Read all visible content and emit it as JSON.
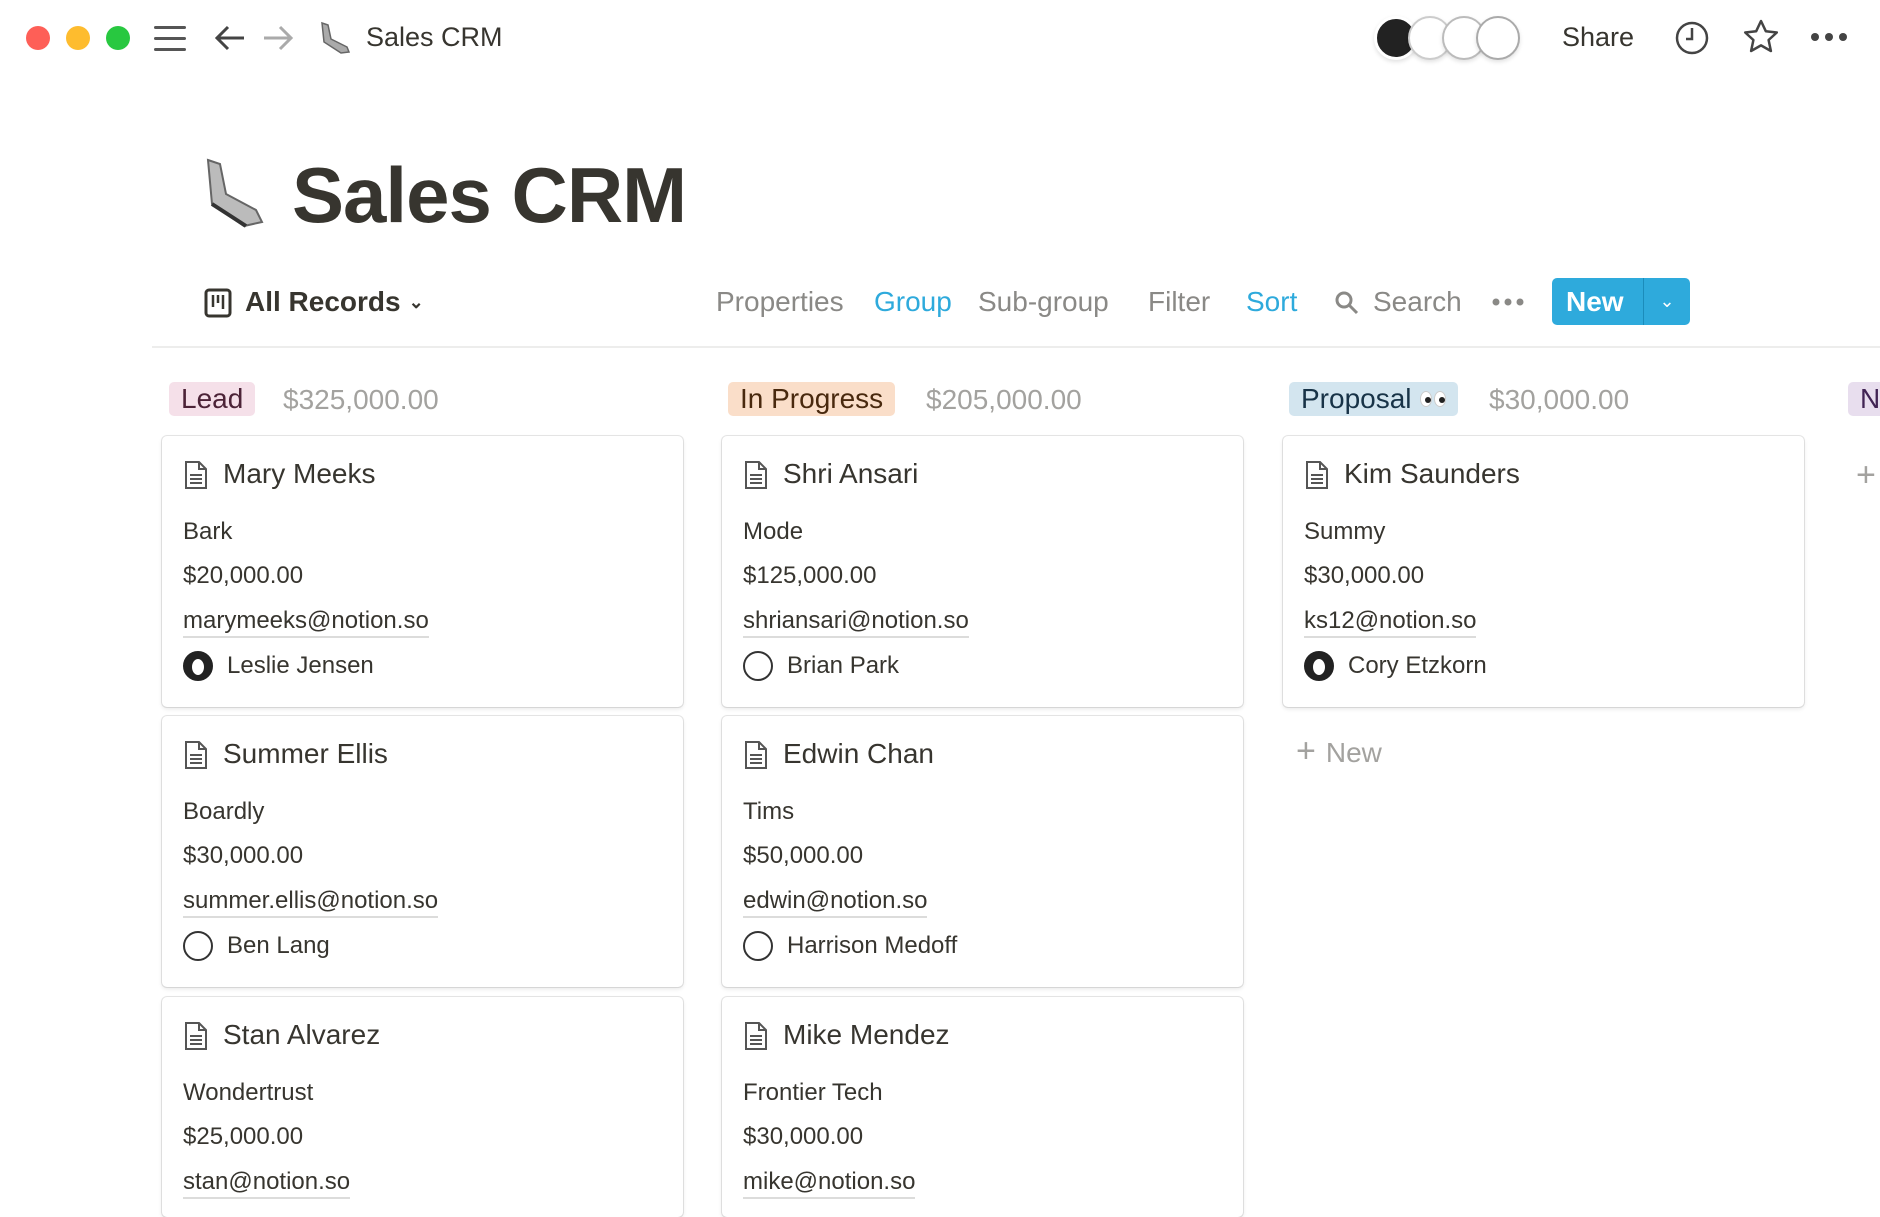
{
  "window": {
    "title": "Sales CRM",
    "traffic_lights": [
      "#fe5f57",
      "#febc2e",
      "#28c840"
    ]
  },
  "topbar": {
    "share_label": "Share",
    "icons": [
      "menu-icon",
      "back-arrow-icon",
      "forward-arrow-icon",
      "history-clock-icon",
      "favorite-star-icon",
      "more-icon"
    ]
  },
  "page": {
    "title": "Sales CRM",
    "icon": "sneaker-icon"
  },
  "toolbar": {
    "view_label": "All Records",
    "properties": "Properties",
    "group": "Group",
    "subgroup": "Sub-group",
    "filter": "Filter",
    "sort": "Sort",
    "search": "Search",
    "new_label": "New",
    "accent": "#2eaadc"
  },
  "board": {
    "add_new_label": "New",
    "columns": [
      {
        "label": "Lead",
        "total": "$325,000.00",
        "bg": "#f5e0e9",
        "fg": "#4c2337",
        "cards": [
          {
            "name": "Mary Meeks",
            "company": "Bark",
            "amount": "$20,000.00",
            "email": "marymeeks@notion.so",
            "owner": "Leslie Jensen",
            "owner_style": "dark"
          },
          {
            "name": "Summer Ellis",
            "company": "Boardly",
            "amount": "$30,000.00",
            "email": "summer.ellis@notion.so",
            "owner": "Ben Lang",
            "owner_style": "light"
          },
          {
            "name": "Stan Alvarez",
            "company": "Wondertrust",
            "amount": "$25,000.00",
            "email": "stan@notion.so"
          }
        ]
      },
      {
        "label": "In Progress",
        "total": "$205,000.00",
        "bg": "#fadec9",
        "fg": "#49290e",
        "cards": [
          {
            "name": "Shri Ansari",
            "company": "Mode",
            "amount": "$125,000.00",
            "email": "shriansari@notion.so",
            "owner": "Brian Park",
            "owner_style": "light"
          },
          {
            "name": "Edwin Chan",
            "company": "Tims",
            "amount": "$50,000.00",
            "email": "edwin@notion.so",
            "owner": "Harrison Medoff",
            "owner_style": "light"
          },
          {
            "name": "Mike Mendez",
            "company": "Frontier Tech",
            "amount": "$30,000.00",
            "email": "mike@notion.so"
          }
        ]
      },
      {
        "label": "Proposal",
        "total": "$30,000.00",
        "bg": "#d3e5ef",
        "fg": "#183347",
        "emoji": "eyes-icon",
        "cards": [
          {
            "name": "Kim Saunders",
            "company": "Summy",
            "amount": "$30,000.00",
            "email": "ks12@notion.so",
            "owner": "Cory Etzkorn",
            "owner_style": "dark"
          }
        ],
        "show_add": true
      },
      {
        "label": "N",
        "bg": "#e8deee",
        "fg": "#412454",
        "cards": []
      }
    ]
  }
}
